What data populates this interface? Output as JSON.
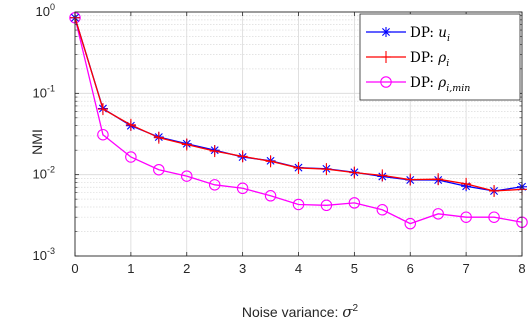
{
  "chart_data": {
    "type": "line",
    "title": "",
    "xlabel": {
      "text": "Noise variance: ",
      "symbol": "σ",
      "sup": "2"
    },
    "ylabel": "NMI",
    "xlim": [
      0,
      8
    ],
    "ylim": [
      0.001,
      1
    ],
    "yscale": "log",
    "grid": true,
    "legend_position": "top-right",
    "xticks": [
      "0",
      "1",
      "2",
      "3",
      "4",
      "5",
      "6",
      "7",
      "8"
    ],
    "yticks": [
      {
        "value": 1,
        "base": "10",
        "exp": "0"
      },
      {
        "value": 0.1,
        "base": "10",
        "exp": "-1"
      },
      {
        "value": 0.01,
        "base": "10",
        "exp": "-2"
      },
      {
        "value": 0.001,
        "base": "10",
        "exp": "-3"
      }
    ],
    "x": [
      0,
      0.5,
      1,
      1.5,
      2,
      2.5,
      3,
      3.5,
      4,
      4.5,
      5,
      5.5,
      6,
      6.5,
      7,
      7.5,
      8
    ],
    "series": [
      {
        "name": "DP: u_i",
        "legend": {
          "prefix": "DP: ",
          "symbol": "u",
          "sub": "i"
        },
        "color": "#0000ff",
        "marker": "asterisk",
        "values": [
          0.85,
          0.065,
          0.04,
          0.029,
          0.024,
          0.02,
          0.0165,
          0.0148,
          0.0122,
          0.0118,
          0.0107,
          0.0095,
          0.0086,
          0.0086,
          0.0072,
          0.0063,
          0.0071
        ]
      },
      {
        "name": "DP: ρ_i",
        "legend": {
          "prefix": "DP: ",
          "symbol": "ρ",
          "sub": "i"
        },
        "color": "#ff0000",
        "marker": "plus",
        "values": [
          0.85,
          0.064,
          0.041,
          0.0285,
          0.0235,
          0.0195,
          0.0168,
          0.0146,
          0.0121,
          0.0117,
          0.0106,
          0.0098,
          0.0087,
          0.0088,
          0.0077,
          0.0063,
          0.0066
        ]
      },
      {
        "name": "DP: ρ_i,min",
        "legend": {
          "prefix": "DP: ",
          "symbol": "ρ",
          "sub": "i,min"
        },
        "color": "#ff00ff",
        "marker": "circle",
        "values": [
          0.85,
          0.031,
          0.0165,
          0.0115,
          0.0096,
          0.0075,
          0.0068,
          0.0055,
          0.0043,
          0.0042,
          0.0045,
          0.0037,
          0.0025,
          0.0033,
          0.003,
          0.003,
          0.0026
        ]
      }
    ]
  }
}
